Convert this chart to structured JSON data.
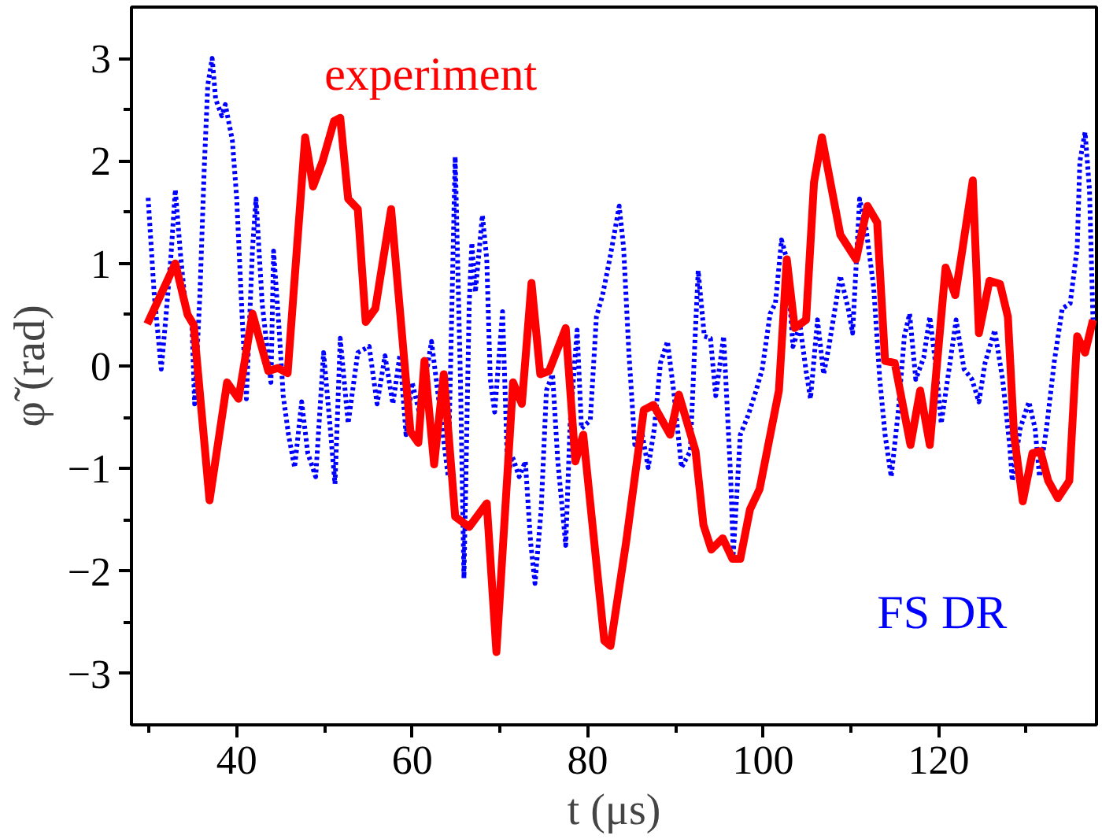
{
  "chart_data": {
    "type": "line",
    "xlabel": "t (μs)",
    "ylabel": "φ̃ (rad)",
    "xlim": [
      28,
      138
    ],
    "ylim": [
      -3.5,
      3.5
    ],
    "xticks": [
      {
        "value": 30,
        "label": null
      },
      40,
      {
        "value": 50,
        "label": null
      },
      60,
      {
        "value": 70,
        "label": null
      },
      80,
      {
        "value": 90,
        "label": null
      },
      100,
      {
        "value": 110,
        "label": null
      },
      120,
      {
        "value": 130,
        "label": null
      }
    ],
    "yticks": [
      -3,
      {
        "value": -2.5,
        "label": null
      },
      -2,
      {
        "value": -1.5,
        "label": null
      },
      -1,
      {
        "value": -0.5,
        "label": null
      },
      0,
      {
        "value": 0.5,
        "label": null
      },
      1,
      {
        "value": 1.5,
        "label": null
      },
      2,
      {
        "value": 2.5,
        "label": null
      },
      3
    ],
    "grid": false,
    "legend": false,
    "series": [
      {
        "name": "FS DR",
        "color": "#0000ff",
        "line_style": "dotted",
        "x": [
          29.9,
          30.6,
          31.4,
          31.9,
          32.5,
          33.0,
          33.6,
          34.1,
          34.9,
          35.2,
          35.8,
          36.3,
          36.7,
          37.2,
          37.6,
          38.3,
          38.7,
          39.5,
          40.0,
          40.6,
          41.1,
          41.8,
          42.2,
          42.9,
          43.9,
          44.2,
          44.8,
          45.3,
          45.9,
          46.6,
          47.4,
          48.1,
          49.0,
          49.9,
          50.5,
          51.2,
          51.8,
          52.7,
          53.8,
          55.1,
          56.0,
          56.9,
          57.8,
          58.6,
          59.3,
          60.0,
          60.8,
          61.5,
          62.2,
          63.2,
          64.1,
          64.9,
          65.5,
          65.9,
          66.5,
          66.8,
          67.2,
          68.0,
          68.5,
          68.9,
          69.4,
          70.3,
          70.9,
          71.4,
          72.2,
          72.9,
          73.5,
          74.0,
          74.7,
          75.3,
          76.0,
          76.6,
          77.5,
          78.0,
          78.8,
          79.3,
          80.3,
          81.0,
          81.7,
          82.6,
          83.6,
          84.1,
          84.7,
          85.4,
          86.1,
          86.9,
          87.6,
          88.3,
          89.1,
          89.8,
          90.7,
          91.7,
          92.2,
          92.6,
          93.3,
          94.0,
          94.6,
          95.5,
          96.3,
          96.6,
          97.4,
          98.3,
          99.2,
          99.9,
          100.8,
          101.4,
          102.1,
          102.7,
          103.4,
          104.2,
          104.9,
          105.4,
          106.2,
          106.9,
          107.5,
          108.2,
          108.8,
          109.7,
          110.2,
          111.0,
          111.7,
          112.6,
          113.3,
          113.9,
          114.6,
          115.4,
          116.1,
          116.7,
          117.4,
          118.3,
          119.0,
          119.8,
          120.3,
          121.2,
          122.0,
          122.9,
          123.8,
          124.6,
          125.3,
          126.4,
          127.3,
          128.1,
          128.4,
          129.3,
          130.3,
          131.0,
          131.5,
          132.3,
          133.2,
          134.1,
          135.0,
          135.8,
          136.1,
          136.7,
          137.2,
          137.6
        ],
        "values": [
          1.64,
          0.69,
          -0.03,
          0.45,
          1.07,
          1.72,
          1.08,
          0.64,
          0.4,
          -0.37,
          0.69,
          1.94,
          2.74,
          3.0,
          2.6,
          2.44,
          2.55,
          2.2,
          1.63,
          0.51,
          -0.32,
          1.15,
          1.63,
          0.61,
          -0.16,
          1.12,
          0.4,
          -0.29,
          -0.67,
          -0.99,
          -0.35,
          -0.85,
          -1.08,
          0.13,
          -0.45,
          -1.15,
          0.27,
          -0.56,
          0.13,
          0.19,
          -0.37,
          0.1,
          -0.37,
          0.11,
          -0.67,
          -0.16,
          -0.45,
          -0.13,
          0.24,
          -0.45,
          -1.08,
          2.04,
          -0.13,
          -2.07,
          0.61,
          1.2,
          0.72,
          1.47,
          1.04,
          -0.13,
          -0.45,
          0.53,
          -1.08,
          -0.88,
          -1.08,
          -0.93,
          -1.72,
          -2.12,
          -1.4,
          -0.24,
          -0.08,
          -0.93,
          -1.75,
          -0.56,
          0.35,
          -0.61,
          -0.53,
          0.48,
          0.69,
          1.08,
          1.56,
          1.15,
          0.13,
          -0.8,
          -0.61,
          -0.99,
          -0.61,
          0.03,
          0.24,
          -0.24,
          -0.99,
          -0.83,
          0.19,
          0.93,
          0.29,
          0.27,
          -0.29,
          0.29,
          -1.08,
          -1.83,
          -0.67,
          -0.48,
          -0.24,
          -0.03,
          0.51,
          0.61,
          1.23,
          1.04,
          0.19,
          0.4,
          -0.05,
          -0.32,
          0.45,
          -0.08,
          0.19,
          0.56,
          0.88,
          0.56,
          0.32,
          1.63,
          1.36,
          0.77,
          -0.13,
          -0.67,
          -1.08,
          -0.45,
          0.29,
          0.51,
          -0.13,
          0.08,
          0.48,
          -0.08,
          -0.56,
          -0.03,
          0.45,
          -0.03,
          -0.13,
          -0.35,
          0.03,
          0.35,
          -0.13,
          -0.77,
          -1.12,
          -0.61,
          -0.35,
          -0.61,
          -1.08,
          -0.61,
          0.05,
          0.56,
          0.61,
          1.15,
          1.99,
          2.28,
          1.72,
          0.45
        ]
      },
      {
        "name": "experiment",
        "color": "#ff0000",
        "line_style": "solid",
        "x": [
          29.8,
          33.0,
          34.4,
          35.1,
          36.9,
          38.9,
          40.2,
          41.8,
          43.6,
          44.7,
          45.8,
          47.8,
          48.7,
          49.8,
          51.1,
          51.8,
          52.7,
          53.8,
          54.7,
          55.8,
          57.6,
          59.8,
          60.7,
          61.4,
          62.5,
          63.6,
          64.9,
          66.5,
          68.5,
          69.6,
          71.5,
          72.5,
          73.6,
          74.6,
          75.6,
          77.5,
          78.6,
          79.5,
          81.9,
          82.6,
          84.4,
          86.4,
          87.5,
          89.4,
          90.4,
          92.3,
          93.2,
          94.1,
          95.4,
          96.5,
          97.4,
          98.5,
          99.6,
          101.8,
          102.7,
          103.6,
          104.9,
          105.8,
          106.7,
          108.8,
          110.6,
          111.9,
          113.0,
          113.9,
          115.0,
          116.8,
          117.9,
          119.0,
          120.8,
          121.9,
          122.6,
          123.9,
          124.6,
          125.8,
          127.0,
          127.9,
          128.6,
          129.6,
          130.7,
          131.6,
          132.5,
          133.6,
          134.9,
          135.8,
          136.7,
          137.6
        ],
        "values": [
          0.41,
          1.0,
          0.5,
          0.4,
          -1.31,
          -0.16,
          -0.32,
          0.51,
          -0.05,
          -0.02,
          -0.07,
          2.23,
          1.75,
          2.0,
          2.39,
          2.42,
          1.63,
          1.53,
          0.43,
          0.56,
          1.53,
          -0.64,
          -0.75,
          0.05,
          -0.96,
          -0.08,
          -1.47,
          -1.57,
          -1.34,
          -2.79,
          -0.16,
          -0.37,
          0.81,
          -0.08,
          -0.05,
          0.37,
          -0.93,
          -0.67,
          -2.68,
          -2.73,
          -1.71,
          -0.43,
          -0.38,
          -0.67,
          -0.28,
          -0.83,
          -1.55,
          -1.79,
          -1.68,
          -1.88,
          -1.88,
          -1.4,
          -1.2,
          -0.24,
          1.04,
          0.37,
          0.45,
          1.79,
          2.23,
          1.28,
          1.04,
          1.56,
          1.4,
          0.05,
          0.03,
          -0.77,
          -0.24,
          -0.77,
          0.96,
          0.69,
          1.07,
          1.81,
          0.32,
          0.83,
          0.8,
          0.48,
          -0.67,
          -1.32,
          -0.85,
          -0.83,
          -1.12,
          -1.29,
          -1.12,
          0.29,
          0.13,
          0.45
        ]
      }
    ]
  }
}
